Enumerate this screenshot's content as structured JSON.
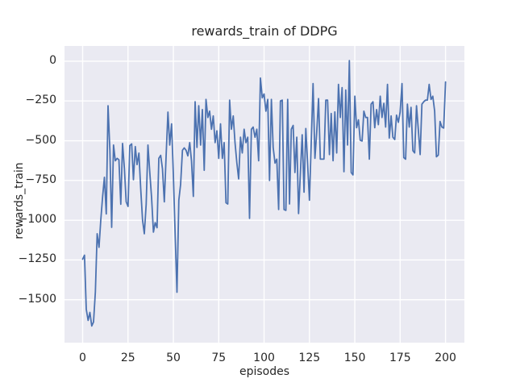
{
  "chart_data": {
    "type": "line",
    "title": "rewards_train of DDPG",
    "xlabel": "episodes",
    "ylabel": "rewards_train",
    "legend": null,
    "grid": true,
    "style": "seaborn-darkgrid",
    "background": "#EAEAF2",
    "grid_color": "#FFFFFF",
    "line_color": "#4C72B0",
    "text_color": "#262626",
    "xlim": [
      -10,
      210.4
    ],
    "ylim": [
      -1770,
      96
    ],
    "x_ticks": [
      0,
      25,
      50,
      75,
      100,
      125,
      150,
      175,
      200
    ],
    "x_tick_labels": [
      "0",
      "25",
      "50",
      "75",
      "100",
      "125",
      "150",
      "175",
      "200"
    ],
    "y_ticks": [
      0,
      -250,
      -500,
      -750,
      -1000,
      -1250,
      -1500
    ],
    "y_tick_labels": [
      "0",
      "−250",
      "−500",
      "−750",
      "−1000",
      "−1250",
      "−1500"
    ],
    "x_start": 0,
    "x_step": 1,
    "values": [
      -1245,
      -1220,
      -1560,
      -1630,
      -1580,
      -1665,
      -1640,
      -1450,
      -1085,
      -1170,
      -1000,
      -850,
      -730,
      -960,
      -280,
      -560,
      -1045,
      -527,
      -626,
      -611,
      -620,
      -900,
      -517,
      -676,
      -884,
      -913,
      -530,
      -520,
      -745,
      -537,
      -650,
      -578,
      -800,
      -999,
      -1085,
      -900,
      -527,
      -700,
      -857,
      -1075,
      -1015,
      -1047,
      -611,
      -592,
      -676,
      -884,
      -600,
      -320,
      -527,
      -394,
      -710,
      -1100,
      -1453,
      -874,
      -775,
      -560,
      -545,
      -560,
      -595,
      -512,
      -626,
      -850,
      -255,
      -542,
      -280,
      -527,
      -304,
      -686,
      -240,
      -354,
      -314,
      -428,
      -344,
      -512,
      -438,
      -611,
      -394,
      -611,
      -512,
      -890,
      -898,
      -245,
      -428,
      -344,
      -512,
      -641,
      -740,
      -478,
      -577,
      -428,
      -512,
      -478,
      -988,
      -428,
      -414,
      -478,
      -428,
      -626,
      -106,
      -230,
      -206,
      -314,
      -240,
      -750,
      -240,
      -542,
      -641,
      -616,
      -933,
      -250,
      -245,
      -933,
      -938,
      -240,
      -898,
      -428,
      -404,
      -700,
      -478,
      -958,
      -700,
      -463,
      -824,
      -423,
      -650,
      -874,
      -500,
      -141,
      -611,
      -450,
      -235,
      -616,
      -616,
      -616,
      -245,
      -245,
      -587,
      -329,
      -626,
      -319,
      -577,
      -146,
      -354,
      -166,
      -695,
      -181,
      -527,
      4,
      -700,
      -715,
      -220,
      -418,
      -369,
      -497,
      -502,
      -314,
      -354,
      -354,
      -616,
      -270,
      -255,
      -418,
      -304,
      -399,
      -220,
      -354,
      -265,
      -414,
      -146,
      -483,
      -344,
      -478,
      -492,
      -339,
      -384,
      -319,
      -141,
      -606,
      -616,
      -270,
      -414,
      -290,
      -562,
      -577,
      -280,
      -428,
      -587,
      -270,
      -255,
      -245,
      -245,
      -146,
      -240,
      -220,
      -314,
      -601,
      -590,
      -379,
      -414,
      -420,
      -130
    ]
  }
}
